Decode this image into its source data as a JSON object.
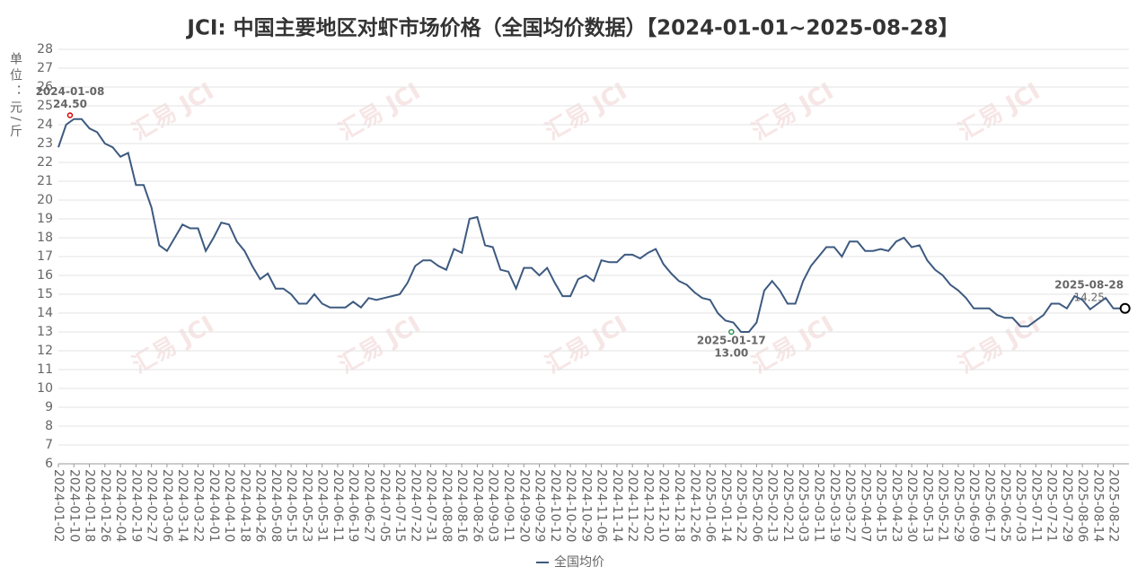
{
  "chart_data": {
    "type": "line",
    "title": "JCI: 中国主要地区对虾市场价格（全国均价数据）【2024-01-01~2025-08-28】",
    "y_label": "单位：元/斤",
    "watermark": "汇易 JCI",
    "categories": [
      "2024-01-02",
      null,
      "2024-01-10",
      null,
      "2024-01-18",
      null,
      "2024-01-26",
      null,
      "2024-02-04",
      null,
      "2024-02-19",
      null,
      "2024-02-27",
      null,
      "2024-03-06",
      null,
      "2024-03-14",
      null,
      "2024-03-22",
      null,
      "2024-04-01",
      null,
      "2024-04-10",
      null,
      "2024-04-18",
      null,
      "2024-04-26",
      null,
      "2024-05-08",
      null,
      "2024-05-15",
      null,
      "2024-05-23",
      null,
      "2024-05-31",
      null,
      "2024-06-11",
      null,
      "2024-06-19",
      null,
      "2024-06-27",
      null,
      "2024-07-05",
      null,
      "2024-07-15",
      null,
      "2024-07-22",
      null,
      "2024-07-31",
      null,
      "2024-08-08",
      null,
      "2024-08-16",
      null,
      "2024-08-26",
      null,
      "2024-09-03",
      null,
      "2024-09-11",
      null,
      "2024-09-20",
      null,
      "2024-09-29",
      null,
      "2024-10-12",
      null,
      "2024-10-20",
      null,
      "2024-10-29",
      null,
      "2024-11-06",
      null,
      "2024-11-14",
      null,
      "2024-11-22",
      null,
      "2024-12-02",
      null,
      "2024-12-10",
      null,
      "2024-12-18",
      null,
      "2024-12-26",
      null,
      "2025-01-06",
      null,
      "2025-01-14",
      null,
      "2025-01-22",
      null,
      "2025-02-06",
      null,
      "2025-02-13",
      null,
      "2025-02-21",
      null,
      "2025-03-03",
      null,
      "2025-03-11",
      null,
      "2025-03-19",
      null,
      "2025-03-27",
      null,
      "2025-04-07",
      null,
      "2025-04-15",
      null,
      "2025-04-23",
      null,
      "2025-04-30",
      null,
      "2025-05-13",
      null,
      "2025-05-21",
      null,
      "2025-05-29",
      null,
      "2025-06-09",
      null,
      "2025-06-17",
      null,
      "2025-06-25",
      null,
      "2025-07-03",
      null,
      "2025-07-11",
      null,
      "2025-07-21",
      null,
      "2025-07-29",
      null,
      "2025-08-06",
      null,
      "2025-08-14",
      null,
      "2025-08-22",
      null,
      null
    ],
    "series": [
      {
        "name": "全国均价",
        "color": "#3d5a80",
        "values": [
          22.8,
          24.0,
          24.3,
          24.3,
          23.8,
          23.6,
          23.0,
          22.8,
          22.3,
          22.5,
          20.8,
          20.8,
          19.6,
          17.6,
          17.3,
          18.0,
          18.7,
          18.5,
          18.5,
          17.3,
          18.0,
          18.8,
          18.7,
          17.8,
          17.3,
          16.5,
          15.8,
          16.1,
          15.3,
          15.3,
          15.0,
          14.5,
          14.5,
          15.0,
          14.5,
          14.3,
          14.3,
          14.3,
          14.6,
          14.3,
          14.8,
          14.7,
          14.8,
          14.9,
          15.0,
          15.6,
          16.5,
          16.8,
          16.8,
          16.5,
          16.3,
          17.4,
          17.2,
          19.0,
          19.1,
          17.6,
          17.5,
          16.3,
          16.2,
          15.3,
          16.4,
          16.4,
          16.0,
          16.4,
          15.6,
          14.9,
          14.9,
          15.8,
          16.0,
          15.7,
          16.8,
          16.7,
          16.7,
          17.1,
          17.1,
          16.9,
          17.2,
          17.4,
          16.6,
          16.1,
          15.7,
          15.5,
          15.1,
          14.8,
          14.7,
          14.0,
          13.6,
          13.5,
          13.0,
          13.0,
          13.5,
          15.2,
          15.7,
          15.2,
          14.5,
          14.5,
          15.7,
          16.5,
          17.0,
          17.5,
          17.5,
          17.0,
          17.8,
          17.8,
          17.3,
          17.3,
          17.4,
          17.3,
          17.8,
          18.0,
          17.5,
          17.6,
          16.8,
          16.3,
          16.0,
          15.5,
          15.2,
          14.8,
          14.25,
          14.25,
          14.25,
          13.9,
          13.75,
          13.75,
          13.3,
          13.3,
          13.6,
          13.9,
          14.5,
          14.5,
          14.25,
          14.9,
          14.7,
          14.2,
          14.5,
          14.8,
          14.25,
          14.25,
          14.25
        ]
      }
    ],
    "annotations": [
      {
        "date": "2024-01-08",
        "value": 24.5,
        "value_label": "24.50",
        "color": "#e00000"
      },
      {
        "date": "2025-01-17",
        "value": 13,
        "value_label": "13.00",
        "color": "#2e9158"
      },
      {
        "date": "2025-08-28",
        "value": 14.25,
        "value_label": "14.25",
        "color": "#000000"
      }
    ],
    "ylim": [
      6,
      28
    ],
    "yticks": [
      6,
      7,
      8,
      9,
      10,
      11,
      12,
      13,
      14,
      15,
      16,
      17,
      18,
      19,
      20,
      21,
      22,
      23,
      24,
      25,
      26,
      27,
      28
    ],
    "grid": true
  }
}
